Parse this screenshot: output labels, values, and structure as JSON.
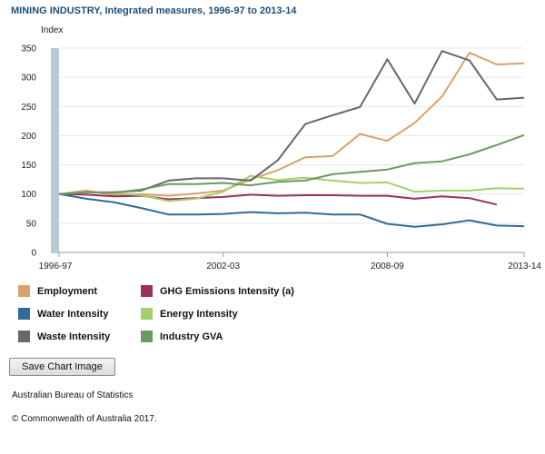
{
  "title": "MINING INDUSTRY, Integrated measures, 1996-97 to 2013-14",
  "button_label": "Save Chart Image",
  "source": "Australian Bureau of Statistics",
  "copyright": "© Commonwealth of Australia 2017.",
  "chart_data": {
    "type": "line",
    "title": "MINING INDUSTRY, Integrated measures, 1996-97 to 2013-14",
    "ylabel": "Index",
    "xlabel": "",
    "ylim": [
      0,
      350
    ],
    "yticks": [
      0,
      50,
      100,
      150,
      200,
      250,
      300,
      350
    ],
    "grid": true,
    "legend_position": "bottom",
    "x": [
      "1996-97",
      "1997-98",
      "1998-99",
      "1999-00",
      "2000-01",
      "2001-02",
      "2002-03",
      "2003-04",
      "2004-05",
      "2005-06",
      "2006-07",
      "2007-08",
      "2008-09",
      "2009-10",
      "2010-11",
      "2011-12",
      "2012-13",
      "2013-14"
    ],
    "x_tick_labels": [
      "1996-97",
      "2002-03",
      "2008-09",
      "2013-14"
    ],
    "series": [
      {
        "name": "Employment",
        "color": "#d8a26b",
        "values": [
          100,
          106,
          98,
          100,
          97,
          101,
          106,
          125,
          141,
          163,
          165,
          203,
          191,
          222,
          267,
          342,
          322,
          324
        ]
      },
      {
        "name": "GHG Emissions Intensity (a)",
        "color": "#9b2f5e",
        "values": [
          100,
          99,
          96,
          97,
          91,
          93,
          95,
          99,
          97,
          98,
          98,
          97,
          97,
          92,
          96,
          93,
          82,
          null
        ]
      },
      {
        "name": "Water Intensity",
        "color": "#336a99",
        "values": [
          100,
          92,
          86,
          76,
          65,
          65,
          66,
          69,
          67,
          68,
          65,
          65,
          49,
          44,
          48,
          55,
          46,
          45
        ]
      },
      {
        "name": "Energy Intensity",
        "color": "#a5cf6c",
        "values": [
          100,
          103,
          102,
          98,
          88,
          92,
          104,
          131,
          124,
          128,
          123,
          119,
          120,
          104,
          106,
          106,
          110,
          109
        ]
      },
      {
        "name": "Waste Intensity",
        "color": "#686868",
        "values": [
          100,
          103,
          103,
          106,
          123,
          127,
          127,
          123,
          158,
          220,
          235,
          249,
          331,
          255,
          345,
          329,
          262,
          265
        ]
      },
      {
        "name": "Industry GVA",
        "color": "#6a9a62",
        "values": [
          100,
          103,
          102,
          108,
          117,
          117,
          119,
          115,
          121,
          123,
          134,
          138,
          142,
          153,
          156,
          168,
          184,
          201
        ]
      }
    ]
  }
}
